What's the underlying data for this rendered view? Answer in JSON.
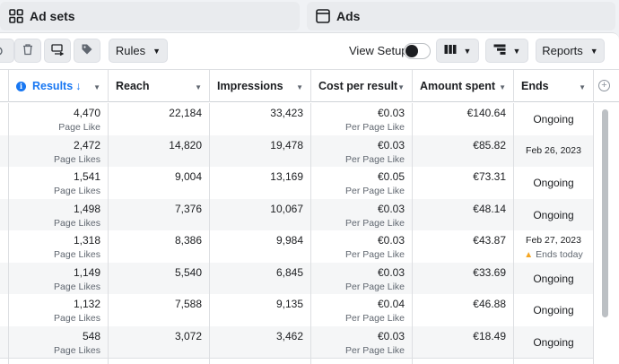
{
  "tabs": {
    "adsets": "Ad sets",
    "ads": "Ads"
  },
  "toolbar": {
    "rules_label": "Rules",
    "view_setup_label": "View Setup",
    "reports_label": "Reports"
  },
  "columns": {
    "results": "Results",
    "results_sort": "↓",
    "reach": "Reach",
    "impressions": "Impressions",
    "cost": "Cost per result",
    "amount": "Amount spent",
    "ends": "Ends"
  },
  "rows": [
    {
      "results": "4,470",
      "results_sub": "Page Like",
      "reach": "22,184",
      "impressions": "33,423",
      "cost": "€0.03",
      "cost_sub": "Per Page Like",
      "amount": "€140.64",
      "ends": "Ongoing",
      "ends_sub": ""
    },
    {
      "results": "2,472",
      "results_sub": "Page Likes",
      "reach": "14,820",
      "impressions": "19,478",
      "cost": "€0.03",
      "cost_sub": "Per Page Like",
      "amount": "€85.82",
      "ends": "Feb 26, 2023",
      "ends_sub": ""
    },
    {
      "results": "1,541",
      "results_sub": "Page Likes",
      "reach": "9,004",
      "impressions": "13,169",
      "cost": "€0.05",
      "cost_sub": "Per Page Like",
      "amount": "€73.31",
      "ends": "Ongoing",
      "ends_sub": ""
    },
    {
      "results": "1,498",
      "results_sub": "Page Likes",
      "reach": "7,376",
      "impressions": "10,067",
      "cost": "€0.03",
      "cost_sub": "Per Page Like",
      "amount": "€48.14",
      "ends": "Ongoing",
      "ends_sub": ""
    },
    {
      "results": "1,318",
      "results_sub": "Page Likes",
      "reach": "8,386",
      "impressions": "9,984",
      "cost": "€0.03",
      "cost_sub": "Per Page Like",
      "amount": "€43.87",
      "ends": "Feb 27, 2023",
      "ends_sub": "Ends today"
    },
    {
      "results": "1,149",
      "results_sub": "Page Likes",
      "reach": "5,540",
      "impressions": "6,845",
      "cost": "€0.03",
      "cost_sub": "Per Page Like",
      "amount": "€33.69",
      "ends": "Ongoing",
      "ends_sub": ""
    },
    {
      "results": "1,132",
      "results_sub": "Page Likes",
      "reach": "7,588",
      "impressions": "9,135",
      "cost": "€0.04",
      "cost_sub": "Per Page Like",
      "amount": "€46.88",
      "ends": "Ongoing",
      "ends_sub": ""
    },
    {
      "results": "548",
      "results_sub": "Page Likes",
      "reach": "3,072",
      "impressions": "3,462",
      "cost": "€0.03",
      "cost_sub": "Per Page Like",
      "amount": "€18.49",
      "ends": "Ongoing",
      "ends_sub": ""
    }
  ],
  "colors": {
    "accent": "#1877f2",
    "warning": "#f5a623",
    "alt_row": "#f5f6f7"
  },
  "icons": {
    "adsets_tab": "grid-icon",
    "ads_tab": "window-icon",
    "delete": "trash-icon",
    "duplicate": "duplicate-icon",
    "tag": "tag-icon",
    "columns": "columns-icon",
    "breakdown": "breakdown-icon",
    "info": "info-icon",
    "add_column": "plus-circle-icon"
  }
}
